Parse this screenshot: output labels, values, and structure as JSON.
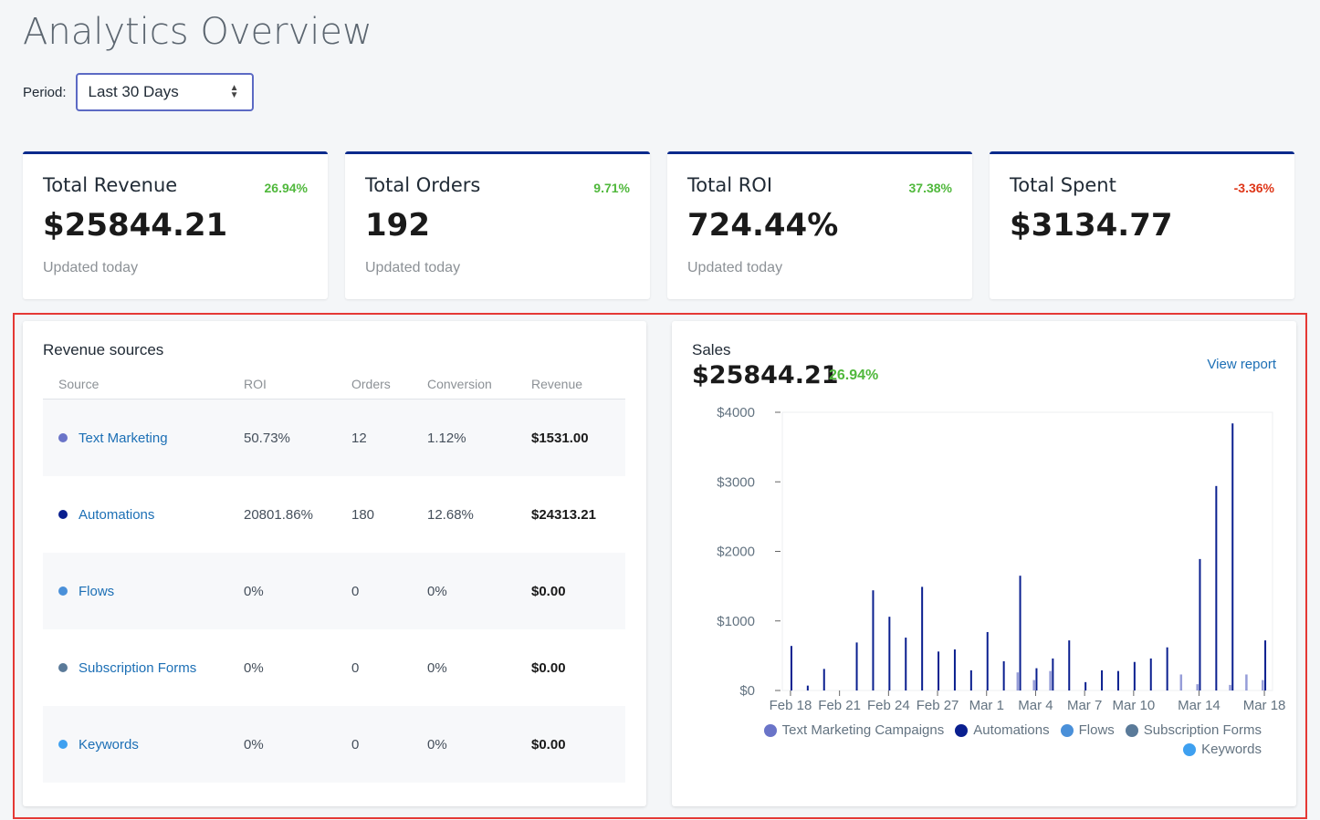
{
  "header": {
    "title": "Analytics Overview",
    "period_label": "Period:",
    "period_value": "Last 30 Days"
  },
  "cards": [
    {
      "title": "Total Revenue",
      "change": "26.94%",
      "value": "$25844.21",
      "sub": "Updated today"
    },
    {
      "title": "Total Orders",
      "change": "9.71%",
      "value": "192",
      "sub": "Updated today"
    },
    {
      "title": "Total ROI",
      "change": "37.38%",
      "value": "724.44%",
      "sub": "Updated today"
    },
    {
      "title": "Total Spent",
      "change": "-3.36%",
      "value": "$3134.77",
      "sub": ""
    }
  ],
  "revenue_sources": {
    "title": "Revenue sources",
    "columns": [
      "Source",
      "ROI",
      "Orders",
      "Conversion",
      "Revenue"
    ],
    "rows": [
      {
        "source": "Text Marketing",
        "roi": "50.73%",
        "orders": "12",
        "conversion": "1.12%",
        "revenue": "$1531.00",
        "color": "#6a74c8"
      },
      {
        "source": "Automations",
        "roi": "20801.86%",
        "orders": "180",
        "conversion": "12.68%",
        "revenue": "$24313.21",
        "color": "#0a1f8f"
      },
      {
        "source": "Flows",
        "roi": "0%",
        "orders": "0",
        "conversion": "0%",
        "revenue": "$0.00",
        "color": "#4a90d9"
      },
      {
        "source": "Subscription Forms",
        "roi": "0%",
        "orders": "0",
        "conversion": "0%",
        "revenue": "$0.00",
        "color": "#5a7a99"
      },
      {
        "source": "Keywords",
        "roi": "0%",
        "orders": "0",
        "conversion": "0%",
        "revenue": "$0.00",
        "color": "#3ea0f0"
      }
    ]
  },
  "sales": {
    "label": "Sales",
    "value": "$25844.21",
    "change": "26.94%",
    "view_report": "View report"
  },
  "chart_data": {
    "type": "bar",
    "title": "",
    "ylim": [
      0,
      4000
    ],
    "y_ticks": [
      "$0",
      "$1000",
      "$2000",
      "$3000",
      "$4000"
    ],
    "x_tick_labels": [
      "Feb 18",
      "Feb 21",
      "Feb 24",
      "Feb 27",
      "Mar 1",
      "Mar 4",
      "Mar 7",
      "Mar 10",
      "Mar 14",
      "Mar 18"
    ],
    "x_tick_days": [
      0,
      3,
      6,
      9,
      12,
      15,
      18,
      21,
      25,
      29
    ],
    "days": 30,
    "legend_position": "bottom-right",
    "series": [
      {
        "name": "Text Marketing Campaigns",
        "color": "#6a74c8",
        "values": [
          0,
          0,
          0,
          0,
          0,
          0,
          0,
          0,
          0,
          0,
          0,
          0,
          0,
          0,
          260,
          150,
          280,
          0,
          0,
          0,
          0,
          0,
          0,
          0,
          230,
          90,
          0,
          80,
          230,
          150
        ]
      },
      {
        "name": "Automations",
        "color": "#0a1f8f",
        "values": [
          640,
          70,
          310,
          0,
          690,
          1440,
          1060,
          760,
          1490,
          560,
          590,
          290,
          840,
          420,
          1650,
          320,
          460,
          720,
          120,
          290,
          280,
          410,
          460,
          620,
          0,
          1890,
          2940,
          3840,
          0,
          720
        ]
      },
      {
        "name": "Flows",
        "color": "#4a90d9",
        "values": [
          0,
          0,
          0,
          0,
          0,
          0,
          0,
          0,
          0,
          0,
          0,
          0,
          0,
          0,
          0,
          0,
          0,
          0,
          0,
          0,
          0,
          0,
          0,
          0,
          0,
          0,
          0,
          0,
          0,
          0
        ]
      },
      {
        "name": "Subscription Forms",
        "color": "#5a7a99",
        "values": [
          0,
          0,
          0,
          0,
          0,
          0,
          0,
          0,
          0,
          0,
          0,
          0,
          0,
          0,
          0,
          0,
          0,
          0,
          0,
          0,
          0,
          0,
          0,
          0,
          0,
          0,
          0,
          0,
          0,
          0
        ]
      },
      {
        "name": "Keywords",
        "color": "#3ea0f0",
        "values": [
          0,
          0,
          0,
          0,
          0,
          0,
          0,
          0,
          0,
          0,
          0,
          0,
          0,
          0,
          0,
          0,
          0,
          0,
          0,
          0,
          0,
          0,
          0,
          0,
          0,
          0,
          0,
          0,
          0,
          0
        ]
      }
    ]
  }
}
